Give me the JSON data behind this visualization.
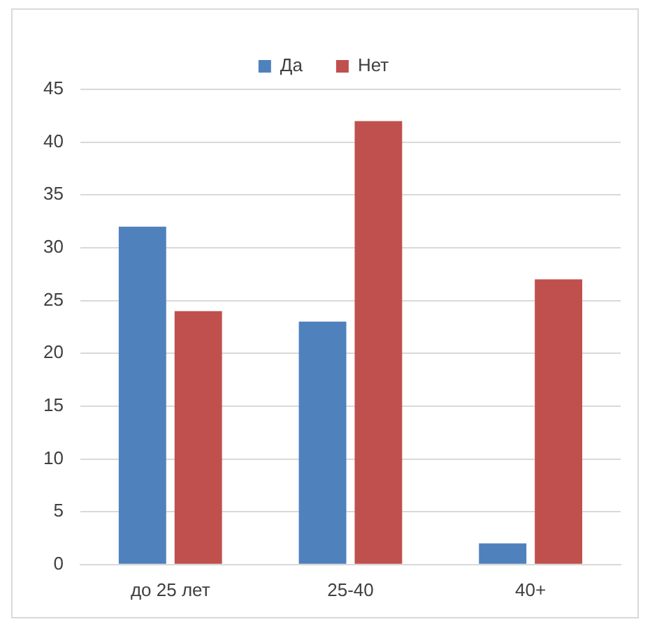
{
  "chart_data": {
    "type": "bar",
    "categories": [
      "до 25 лет",
      "25-40",
      "40+"
    ],
    "series": [
      {
        "name": "Да",
        "color": "#4f81bd",
        "values": [
          32,
          23,
          2
        ]
      },
      {
        "name": "Нет",
        "color": "#c0504d",
        "values": [
          24,
          42,
          27
        ]
      }
    ],
    "ylim": [
      0,
      45
    ],
    "yticks": [
      0,
      5,
      10,
      15,
      20,
      25,
      30,
      35,
      40,
      45
    ],
    "grid": "y",
    "legend": "top"
  }
}
